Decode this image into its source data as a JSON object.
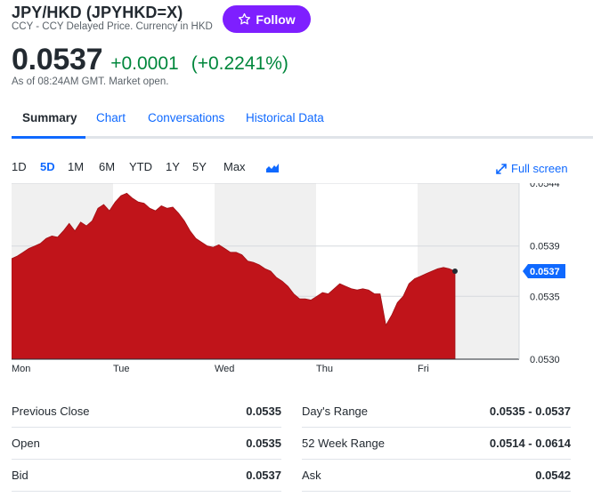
{
  "header": {
    "title": "JPY/HKD (JPYHKD=X)",
    "subtitle": "CCY - CCY Delayed Price. Currency in HKD",
    "follow_label": "Follow"
  },
  "quote": {
    "price": "0.0537",
    "change": "+0.0001",
    "change_pct": "(+0.2241%)",
    "as_of": "As of 08:24AM GMT. Market open."
  },
  "tabs": [
    {
      "label": "Summary",
      "active": true
    },
    {
      "label": "Chart"
    },
    {
      "label": "Conversations"
    },
    {
      "label": "Historical Data"
    }
  ],
  "ranges": [
    {
      "label": "1D"
    },
    {
      "label": "5D",
      "active": true
    },
    {
      "label": "1M"
    },
    {
      "label": "6M"
    },
    {
      "label": "YTD"
    },
    {
      "label": "1Y"
    },
    {
      "label": "5Y"
    },
    {
      "label": "Max"
    }
  ],
  "fullscreen_label": "Full screen",
  "colors": {
    "accent": "#0f69ff",
    "follow": "#7e1fff",
    "positive": "#00873c",
    "area": "#c0141a"
  },
  "chart_data": {
    "type": "area",
    "x_ticks": [
      "Mon",
      "Tue",
      "Wed",
      "Thu",
      "Fri"
    ],
    "y_ticks": [
      "0.0544",
      "0.0539",
      "0.0535",
      "0.0530"
    ],
    "ylim": [
      0.053,
      0.0544
    ],
    "current_value_label": "0.0537",
    "current_value": 0.0537,
    "series": [
      {
        "values": [
          0.0538,
          0.05382,
          0.05385,
          0.05388,
          0.0539,
          0.05392,
          0.05396,
          0.05398,
          0.05397,
          0.05402,
          0.05408,
          0.05402,
          0.05409,
          0.05406,
          0.0541,
          0.0542,
          0.05423,
          0.05418,
          0.05425,
          0.0543,
          0.05432,
          0.05428,
          0.05425,
          0.05424,
          0.0542,
          0.05418,
          0.05422,
          0.0542,
          0.05421,
          0.05416,
          0.0541,
          0.05402,
          0.05396,
          0.05393,
          0.0539,
          0.05389,
          0.05391,
          0.05388,
          0.05385,
          0.05385,
          0.05383,
          0.05378,
          0.05377,
          0.05375,
          0.05372,
          0.0537,
          0.05365,
          0.05362,
          0.05358,
          0.05352,
          0.05348,
          0.05348,
          0.05347,
          0.0535,
          0.05353,
          0.05352,
          0.05356,
          0.0536,
          0.05358,
          0.05356,
          0.05355,
          0.05356,
          0.05355,
          0.05352,
          0.05352,
          0.05327,
          0.05335,
          0.05345,
          0.0535,
          0.0536,
          0.05364,
          0.05366,
          0.05368,
          0.0537,
          0.05372,
          0.05373,
          0.05372,
          0.0537
        ]
      }
    ]
  },
  "stats": {
    "previous_close": {
      "label": "Previous Close",
      "value": "0.0535"
    },
    "open": {
      "label": "Open",
      "value": "0.0535"
    },
    "bid": {
      "label": "Bid",
      "value": "0.0537"
    },
    "days_range": {
      "label": "Day's Range",
      "value": "0.0535 - 0.0537"
    },
    "week52_range": {
      "label": "52 Week Range",
      "value": "0.0514 - 0.0614"
    },
    "ask": {
      "label": "Ask",
      "value": "0.0542"
    }
  }
}
